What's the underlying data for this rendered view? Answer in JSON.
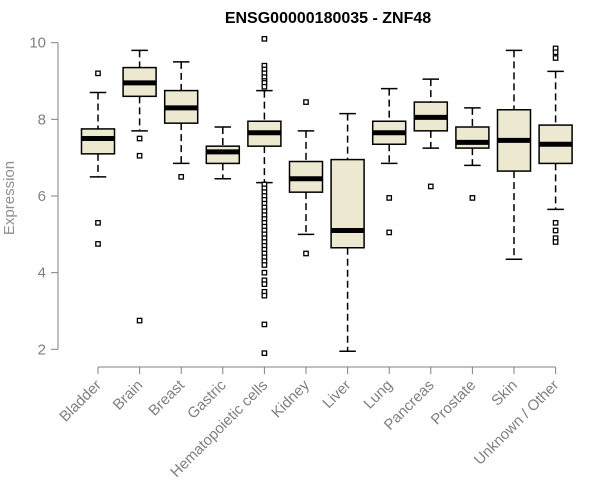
{
  "chart_data": {
    "type": "boxplot",
    "title": "ENSG00000180035 - ZNF48",
    "xlabel": "",
    "ylabel": "Expression",
    "ylim": [
      1.8,
      10.2
    ],
    "yticks": [
      2,
      4,
      6,
      8,
      10
    ],
    "categories": [
      "Bladder",
      "Brain",
      "Breast",
      "Gastric",
      "Hematopoietic cells",
      "Kidney",
      "Liver",
      "Lung",
      "Pancreas",
      "Prostate",
      "Skin",
      "Unknown / Other"
    ],
    "boxes": [
      {
        "name": "Bladder",
        "whisker_low": 6.5,
        "q1": 7.1,
        "median": 7.5,
        "q3": 7.75,
        "whisker_high": 8.7,
        "outliers": [
          9.2,
          5.3,
          4.75
        ]
      },
      {
        "name": "Brain",
        "whisker_low": 7.7,
        "q1": 8.6,
        "median": 8.95,
        "q3": 9.35,
        "whisker_high": 9.8,
        "outliers": [
          7.5,
          7.05,
          2.75
        ]
      },
      {
        "name": "Breast",
        "whisker_low": 6.85,
        "q1": 7.9,
        "median": 8.3,
        "q3": 8.75,
        "whisker_high": 9.5,
        "outliers": [
          6.5
        ]
      },
      {
        "name": "Gastric",
        "whisker_low": 6.45,
        "q1": 6.85,
        "median": 7.15,
        "q3": 7.3,
        "whisker_high": 7.8,
        "outliers": []
      },
      {
        "name": "Hematopoietic cells",
        "whisker_low": 6.35,
        "q1": 7.3,
        "median": 7.65,
        "q3": 7.95,
        "whisker_high": 8.75,
        "outliers": [
          10.1,
          9.4,
          9.3,
          9.2,
          9.1,
          9.0,
          8.95,
          8.85,
          6.3,
          6.2,
          6.1,
          6.0,
          5.9,
          5.8,
          5.7,
          5.6,
          5.5,
          5.4,
          5.3,
          5.2,
          5.1,
          5.0,
          4.9,
          4.8,
          4.7,
          4.6,
          4.5,
          4.4,
          4.3,
          4.2,
          4.0,
          3.8,
          3.7,
          3.5,
          3.4,
          2.65,
          1.9
        ]
      },
      {
        "name": "Kidney",
        "whisker_low": 5.0,
        "q1": 6.1,
        "median": 6.45,
        "q3": 6.9,
        "whisker_high": 7.7,
        "outliers": [
          8.45,
          4.5
        ]
      },
      {
        "name": "Liver",
        "whisker_low": 1.95,
        "q1": 4.65,
        "median": 5.1,
        "q3": 6.95,
        "whisker_high": 8.15,
        "outliers": []
      },
      {
        "name": "Lung",
        "whisker_low": 6.85,
        "q1": 7.35,
        "median": 7.65,
        "q3": 7.95,
        "whisker_high": 8.8,
        "outliers": [
          5.95,
          5.05
        ]
      },
      {
        "name": "Pancreas",
        "whisker_low": 7.25,
        "q1": 7.7,
        "median": 8.05,
        "q3": 8.45,
        "whisker_high": 9.05,
        "outliers": [
          6.25
        ]
      },
      {
        "name": "Prostate",
        "whisker_low": 6.8,
        "q1": 7.25,
        "median": 7.4,
        "q3": 7.8,
        "whisker_high": 8.3,
        "outliers": [
          5.95
        ]
      },
      {
        "name": "Skin",
        "whisker_low": 4.35,
        "q1": 6.65,
        "median": 7.45,
        "q3": 8.25,
        "whisker_high": 9.8,
        "outliers": []
      },
      {
        "name": "Unknown / Other",
        "whisker_low": 5.65,
        "q1": 6.85,
        "median": 7.35,
        "q3": 7.85,
        "whisker_high": 9.25,
        "outliers": [
          9.85,
          9.75,
          9.6,
          5.3,
          5.1,
          4.9,
          4.8
        ]
      }
    ],
    "colors": {
      "box_fill": "#ede8d0",
      "stroke": "#000000",
      "axis": "#808080"
    }
  }
}
